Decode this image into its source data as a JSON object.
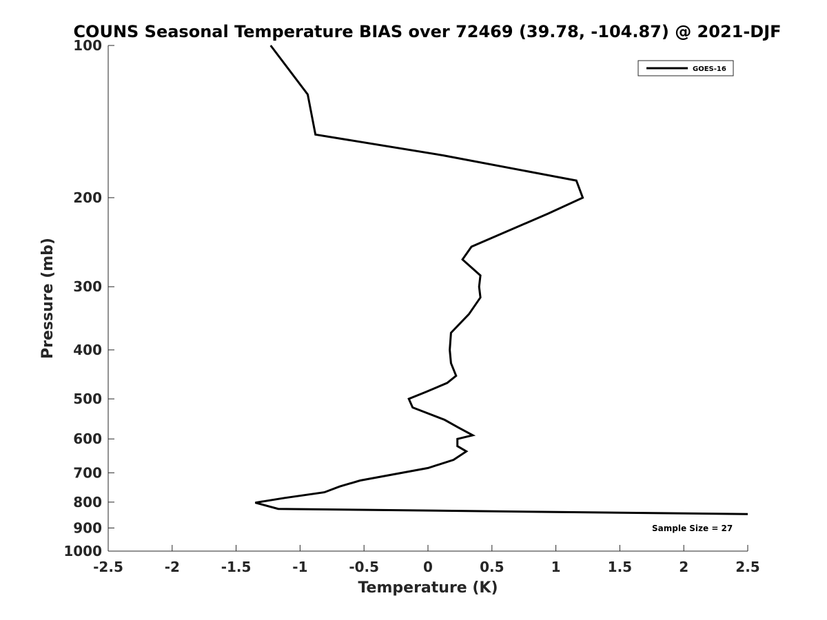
{
  "chart_data": {
    "type": "line",
    "title": "COUNS Seasonal Temperature BIAS over 72469 (39.78, -104.87) @ 2021-DJF",
    "xlabel": "Temperature (K)",
    "ylabel": "Pressure (mb)",
    "xlim": [
      -2.5,
      2.5
    ],
    "ylim": [
      1000,
      100
    ],
    "yscale": "log",
    "y_inverted": true,
    "grid": false,
    "legend_position": "top-right",
    "x_ticks": [
      "-2.5",
      "-2",
      "-1.5",
      "-1",
      "-0.5",
      "0",
      "0.5",
      "1",
      "1.5",
      "2",
      "2.5"
    ],
    "y_ticks": [
      "100",
      "200",
      "300",
      "400",
      "500",
      "600",
      "700",
      "800",
      "900",
      "1000"
    ],
    "series": [
      {
        "name": "GOES-16",
        "color": "#000000",
        "points": [
          {
            "x": -1.23,
            "y": 100
          },
          {
            "x": -0.94,
            "y": 125
          },
          {
            "x": -0.88,
            "y": 150
          },
          {
            "x": 0.12,
            "y": 165
          },
          {
            "x": 1.16,
            "y": 185
          },
          {
            "x": 1.21,
            "y": 200
          },
          {
            "x": 0.94,
            "y": 215
          },
          {
            "x": 0.34,
            "y": 250
          },
          {
            "x": 0.27,
            "y": 265
          },
          {
            "x": 0.41,
            "y": 285
          },
          {
            "x": 0.4,
            "y": 300
          },
          {
            "x": 0.41,
            "y": 315
          },
          {
            "x": 0.32,
            "y": 340
          },
          {
            "x": 0.18,
            "y": 370
          },
          {
            "x": 0.17,
            "y": 400
          },
          {
            "x": 0.18,
            "y": 425
          },
          {
            "x": 0.22,
            "y": 450
          },
          {
            "x": 0.15,
            "y": 465
          },
          {
            "x": -0.02,
            "y": 485
          },
          {
            "x": -0.15,
            "y": 500
          },
          {
            "x": -0.12,
            "y": 520
          },
          {
            "x": 0.13,
            "y": 550
          },
          {
            "x": 0.24,
            "y": 570
          },
          {
            "x": 0.35,
            "y": 590
          },
          {
            "x": 0.23,
            "y": 600
          },
          {
            "x": 0.23,
            "y": 620
          },
          {
            "x": 0.3,
            "y": 635
          },
          {
            "x": 0.2,
            "y": 660
          },
          {
            "x": 0.0,
            "y": 685
          },
          {
            "x": -0.53,
            "y": 725
          },
          {
            "x": -0.69,
            "y": 745
          },
          {
            "x": -0.81,
            "y": 765
          },
          {
            "x": -1.12,
            "y": 785
          },
          {
            "x": -1.35,
            "y": 802
          },
          {
            "x": -1.17,
            "y": 825
          },
          {
            "x": 2.5,
            "y": 845
          }
        ]
      }
    ],
    "legend": {
      "label": "GOES-16"
    },
    "annotation": "Sample Size = 27"
  }
}
